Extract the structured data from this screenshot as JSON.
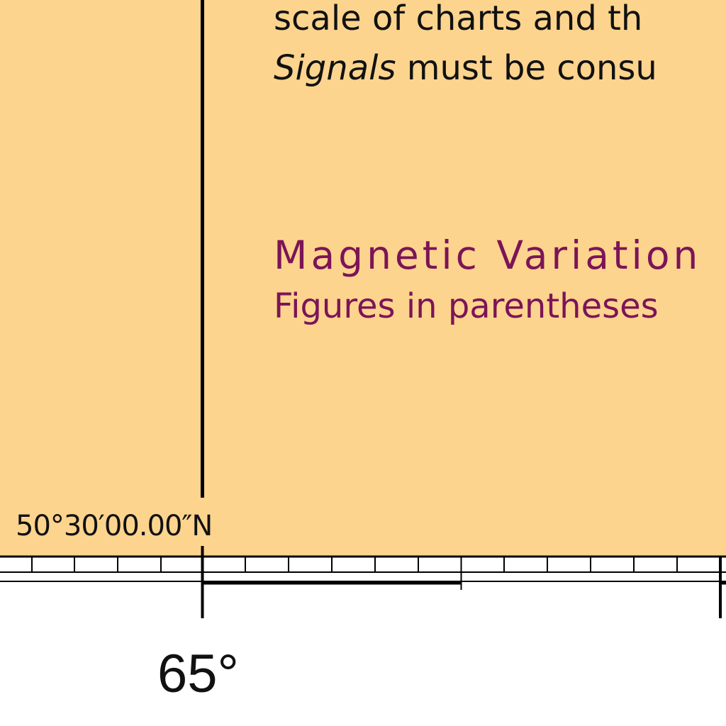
{
  "chart_notes": {
    "line1": "scale of charts and th",
    "line2_italic": "Signals",
    "line2_rest": " must be consu",
    "magnetic_title": "Magnetic Variation",
    "magnetic_sub": "Figures in parentheses"
  },
  "border": {
    "latitude_label": "50°30′00.00″N",
    "longitude_label": "65°"
  },
  "colors": {
    "land_tint": "#fdd48e",
    "magenta": "#7c1457",
    "ink": "#111111"
  }
}
